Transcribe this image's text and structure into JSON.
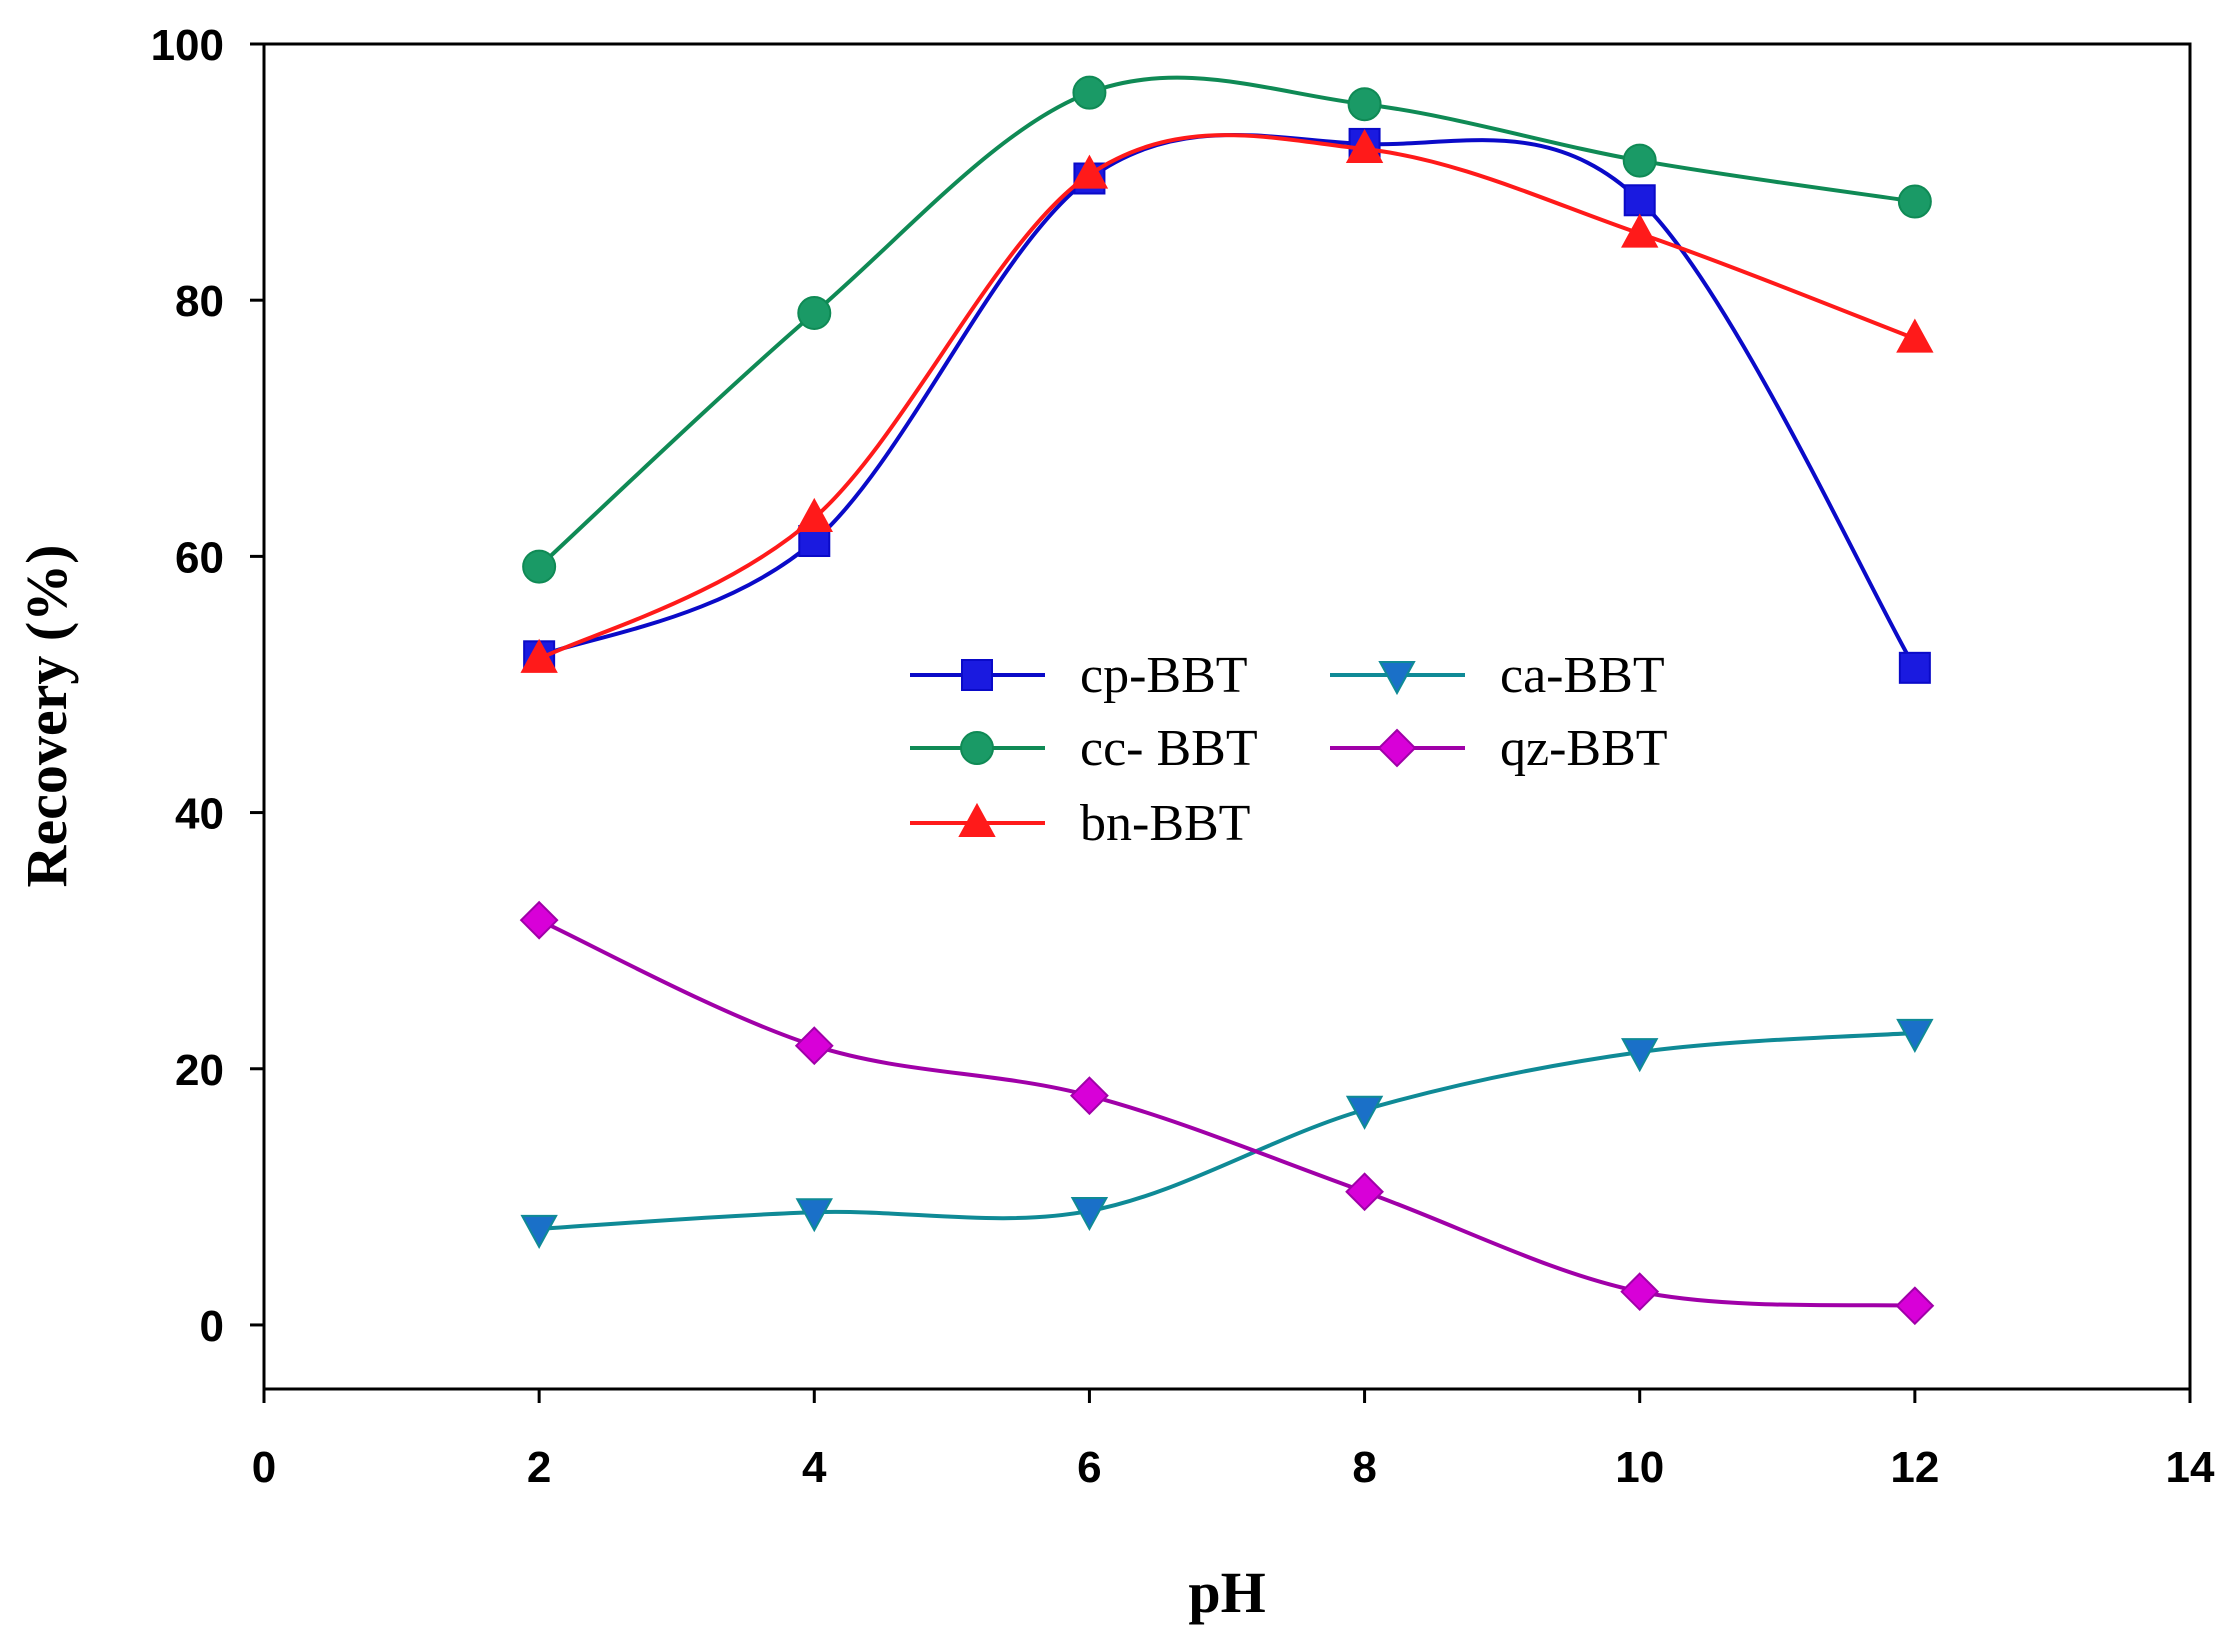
{
  "chart_data": {
    "type": "line",
    "title": "",
    "xlabel": "pH",
    "ylabel": "Recovery (%)",
    "xlim": [
      0,
      14
    ],
    "ylim": [
      -5,
      100
    ],
    "xticks": [
      0,
      2,
      4,
      6,
      8,
      10,
      12,
      14
    ],
    "yticks": [
      0,
      20,
      40,
      60,
      80,
      100
    ],
    "xtick_labels": [
      "0",
      "2",
      "4",
      "6",
      "8",
      "10",
      "12",
      "14"
    ],
    "ytick_labels": [
      "0",
      "20",
      "40",
      "60",
      "80",
      "100"
    ],
    "grid": false,
    "legend_position": "center",
    "x": [
      2,
      4,
      6,
      8,
      10,
      12
    ],
    "series": [
      {
        "name": "cp-BBT",
        "marker": "square",
        "color": "#0a0ac8",
        "values": [
          52.2,
          61.2,
          89.5,
          92.2,
          87.8,
          51.3
        ]
      },
      {
        "name": "cc- BBT",
        "marker": "circle",
        "color": "#0f8a55",
        "values": [
          59.2,
          79.0,
          96.2,
          95.3,
          90.9,
          87.7
        ]
      },
      {
        "name": "bn-BBT",
        "marker": "triangle-up",
        "color": "#ff1a1a",
        "values": [
          52.0,
          63.0,
          89.8,
          91.8,
          85.2,
          77.0
        ]
      },
      {
        "name": "ca-BBT",
        "marker": "triangle-down",
        "color": "#0f8a96",
        "values": [
          7.5,
          8.8,
          8.9,
          16.8,
          21.3,
          22.8
        ]
      },
      {
        "name": "qz-BBT",
        "marker": "diamond",
        "color": "#a000a8",
        "values": [
          31.6,
          21.8,
          17.9,
          10.4,
          2.6,
          1.5
        ]
      }
    ],
    "marker_fills": {
      "square": "#1a1ae0",
      "circle": "#1a9a66",
      "triangle-up": "#ff1a1a",
      "triangle-down": "#1a70c8",
      "diamond": "#d800d8"
    },
    "legend_order": [
      [
        "cp-BBT",
        "ca-BBT"
      ],
      [
        "cc- BBT",
        "qz-BBT"
      ],
      [
        "bn-BBT",
        ""
      ]
    ]
  }
}
